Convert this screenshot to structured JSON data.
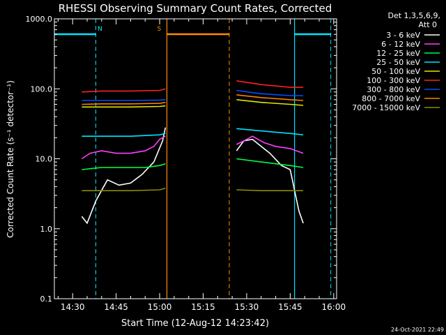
{
  "colors": {
    "background": "#000000",
    "axes": "#ffffff",
    "night": "#00e5ff",
    "saa": "#ff8c00",
    "series": [
      "#ffffff",
      "#ff40ff",
      "#00ff40",
      "#00e5ff",
      "#e5e500",
      "#ff2020",
      "#0050ff",
      "#ff8000",
      "#8c8c00"
    ]
  },
  "chart_data": {
    "type": "line",
    "title": "RHESSI Observing Summary Count Rates, Corrected",
    "xlabel": "Start Time (12-Aug-12 14:23:42)",
    "ylabel": "Corrected Count Rate (s⁻¹ detector⁻¹)",
    "timestamp": "24-Oct-2021 22:49",
    "y_scale": "log",
    "ylim": [
      0.1,
      1000
    ],
    "y_ticks": [
      "0.1",
      "1.0",
      "10.0",
      "100.0",
      "1000.0"
    ],
    "xlim": [
      "14:23:42",
      "16:01:00"
    ],
    "x_ticks": [
      "14:30",
      "14:45",
      "15:00",
      "15:15",
      "15:30",
      "15:45",
      "16:00"
    ],
    "legend": {
      "position": "top-right",
      "header": [
        "Det 1,3,5,6,9,",
        "Att 0"
      ]
    },
    "intervals": [
      {
        "label": "N",
        "type": "night",
        "start": "14:23:42",
        "end": "14:38:00"
      },
      {
        "label": "S",
        "type": "saa",
        "start": "15:02:30",
        "end": "15:24:00"
      },
      {
        "label": "",
        "type": "night",
        "start": "15:46:30",
        "end": "15:59:00"
      }
    ],
    "series": [
      {
        "name": "3 - 6 keV",
        "segments": [
          {
            "t": [
              "14:33:10",
              "14:35:00",
              "14:38:00",
              "14:42:00",
              "14:46:00",
              "14:50:00",
              "14:54:00",
              "14:58:00",
              "15:01:00",
              "15:02:00"
            ],
            "y": [
              1.5,
              1.2,
              2.5,
              5.0,
              4.2,
              4.5,
              6.0,
              9.0,
              18.0,
              28.0
            ]
          },
          {
            "t": [
              "15:26:30",
              "15:29:00",
              "15:32:00",
              "15:35:00",
              "15:38:00",
              "15:42:00",
              "15:45:00",
              "15:48:00",
              "15:49:30"
            ],
            "y": [
              13.0,
              18.0,
              19.0,
              15.0,
              12.0,
              8.0,
              7.0,
              1.8,
              1.2
            ]
          }
        ]
      },
      {
        "name": "6 - 12 keV",
        "segments": [
          {
            "t": [
              "14:33:10",
              "14:36:00",
              "14:40:00",
              "14:45:00",
              "14:50:00",
              "14:55:00",
              "14:58:00",
              "15:00:00",
              "15:02:00"
            ],
            "y": [
              10.0,
              12.0,
              13.0,
              12.0,
              12.0,
              13.0,
              15.0,
              19.0,
              21.0
            ]
          },
          {
            "t": [
              "15:26:30",
              "15:29:00",
              "15:32:00",
              "15:36:00",
              "15:40:00",
              "15:45:00",
              "15:49:30"
            ],
            "y": [
              16.0,
              18.0,
              21.0,
              17.0,
              15.0,
              14.0,
              12.0
            ]
          }
        ]
      },
      {
        "name": "12 - 25 keV",
        "segments": [
          {
            "t": [
              "14:33:10",
              "14:40:00",
              "14:50:00",
              "14:55:00",
              "15:00:00",
              "15:02:00"
            ],
            "y": [
              7.0,
              7.5,
              7.5,
              7.5,
              8.0,
              8.5
            ]
          },
          {
            "t": [
              "15:26:30",
              "15:35:00",
              "15:45:00",
              "15:49:30"
            ],
            "y": [
              10.0,
              9.0,
              8.0,
              7.5
            ]
          }
        ]
      },
      {
        "name": "25 - 50 keV",
        "segments": [
          {
            "t": [
              "14:33:10",
              "14:40:00",
              "14:50:00",
              "15:00:00",
              "15:02:00"
            ],
            "y": [
              21.0,
              21.0,
              21.0,
              22.0,
              23.0
            ]
          },
          {
            "t": [
              "15:26:30",
              "15:35:00",
              "15:45:00",
              "15:49:30"
            ],
            "y": [
              27.0,
              25.0,
              23.0,
              22.0
            ]
          }
        ]
      },
      {
        "name": "50 - 100 keV",
        "segments": [
          {
            "t": [
              "14:33:10",
              "14:40:00",
              "14:50:00",
              "15:00:00",
              "15:02:00"
            ],
            "y": [
              55.0,
              55.0,
              55.0,
              56.0,
              57.0
            ]
          },
          {
            "t": [
              "15:26:30",
              "15:35:00",
              "15:45:00",
              "15:49:30"
            ],
            "y": [
              70.0,
              64.0,
              60.0,
              58.0
            ]
          }
        ]
      },
      {
        "name": "100 - 300 keV",
        "segments": [
          {
            "t": [
              "14:33:10",
              "14:40:00",
              "14:50:00",
              "15:00:00",
              "15:02:00"
            ],
            "y": [
              90.0,
              93.0,
              93.0,
              95.0,
              100.0
            ]
          },
          {
            "t": [
              "15:26:30",
              "15:35:00",
              "15:45:00",
              "15:49:30"
            ],
            "y": [
              130.0,
              115.0,
              105.0,
              105.0
            ]
          }
        ]
      },
      {
        "name": "300 - 800 keV",
        "segments": [
          {
            "t": [
              "14:33:10",
              "14:40:00",
              "14:50:00",
              "15:00:00",
              "15:02:00"
            ],
            "y": [
              68.0,
              68.0,
              68.0,
              69.0,
              70.0
            ]
          },
          {
            "t": [
              "15:26:30",
              "15:35:00",
              "15:45:00",
              "15:49:30"
            ],
            "y": [
              95.0,
              85.0,
              80.0,
              80.0
            ]
          }
        ]
      },
      {
        "name": "800 - 7000 keV",
        "segments": [
          {
            "t": [
              "14:33:10",
              "14:40:00",
              "14:50:00",
              "15:00:00",
              "15:02:00"
            ],
            "y": [
              60.0,
              61.0,
              61.0,
              62.0,
              64.0
            ]
          },
          {
            "t": [
              "15:26:30",
              "15:35:00",
              "15:45:00",
              "15:49:30"
            ],
            "y": [
              82.0,
              75.0,
              70.0,
              68.0
            ]
          }
        ]
      },
      {
        "name": "7000 - 15000 keV",
        "segments": [
          {
            "t": [
              "14:33:10",
              "14:40:00",
              "14:50:00",
              "15:00:00",
              "15:02:00"
            ],
            "y": [
              3.5,
              3.5,
              3.5,
              3.6,
              3.8
            ]
          },
          {
            "t": [
              "15:26:30",
              "15:35:00",
              "15:45:00",
              "15:49:30"
            ],
            "y": [
              3.6,
              3.5,
              3.5,
              3.5
            ]
          }
        ]
      }
    ]
  }
}
